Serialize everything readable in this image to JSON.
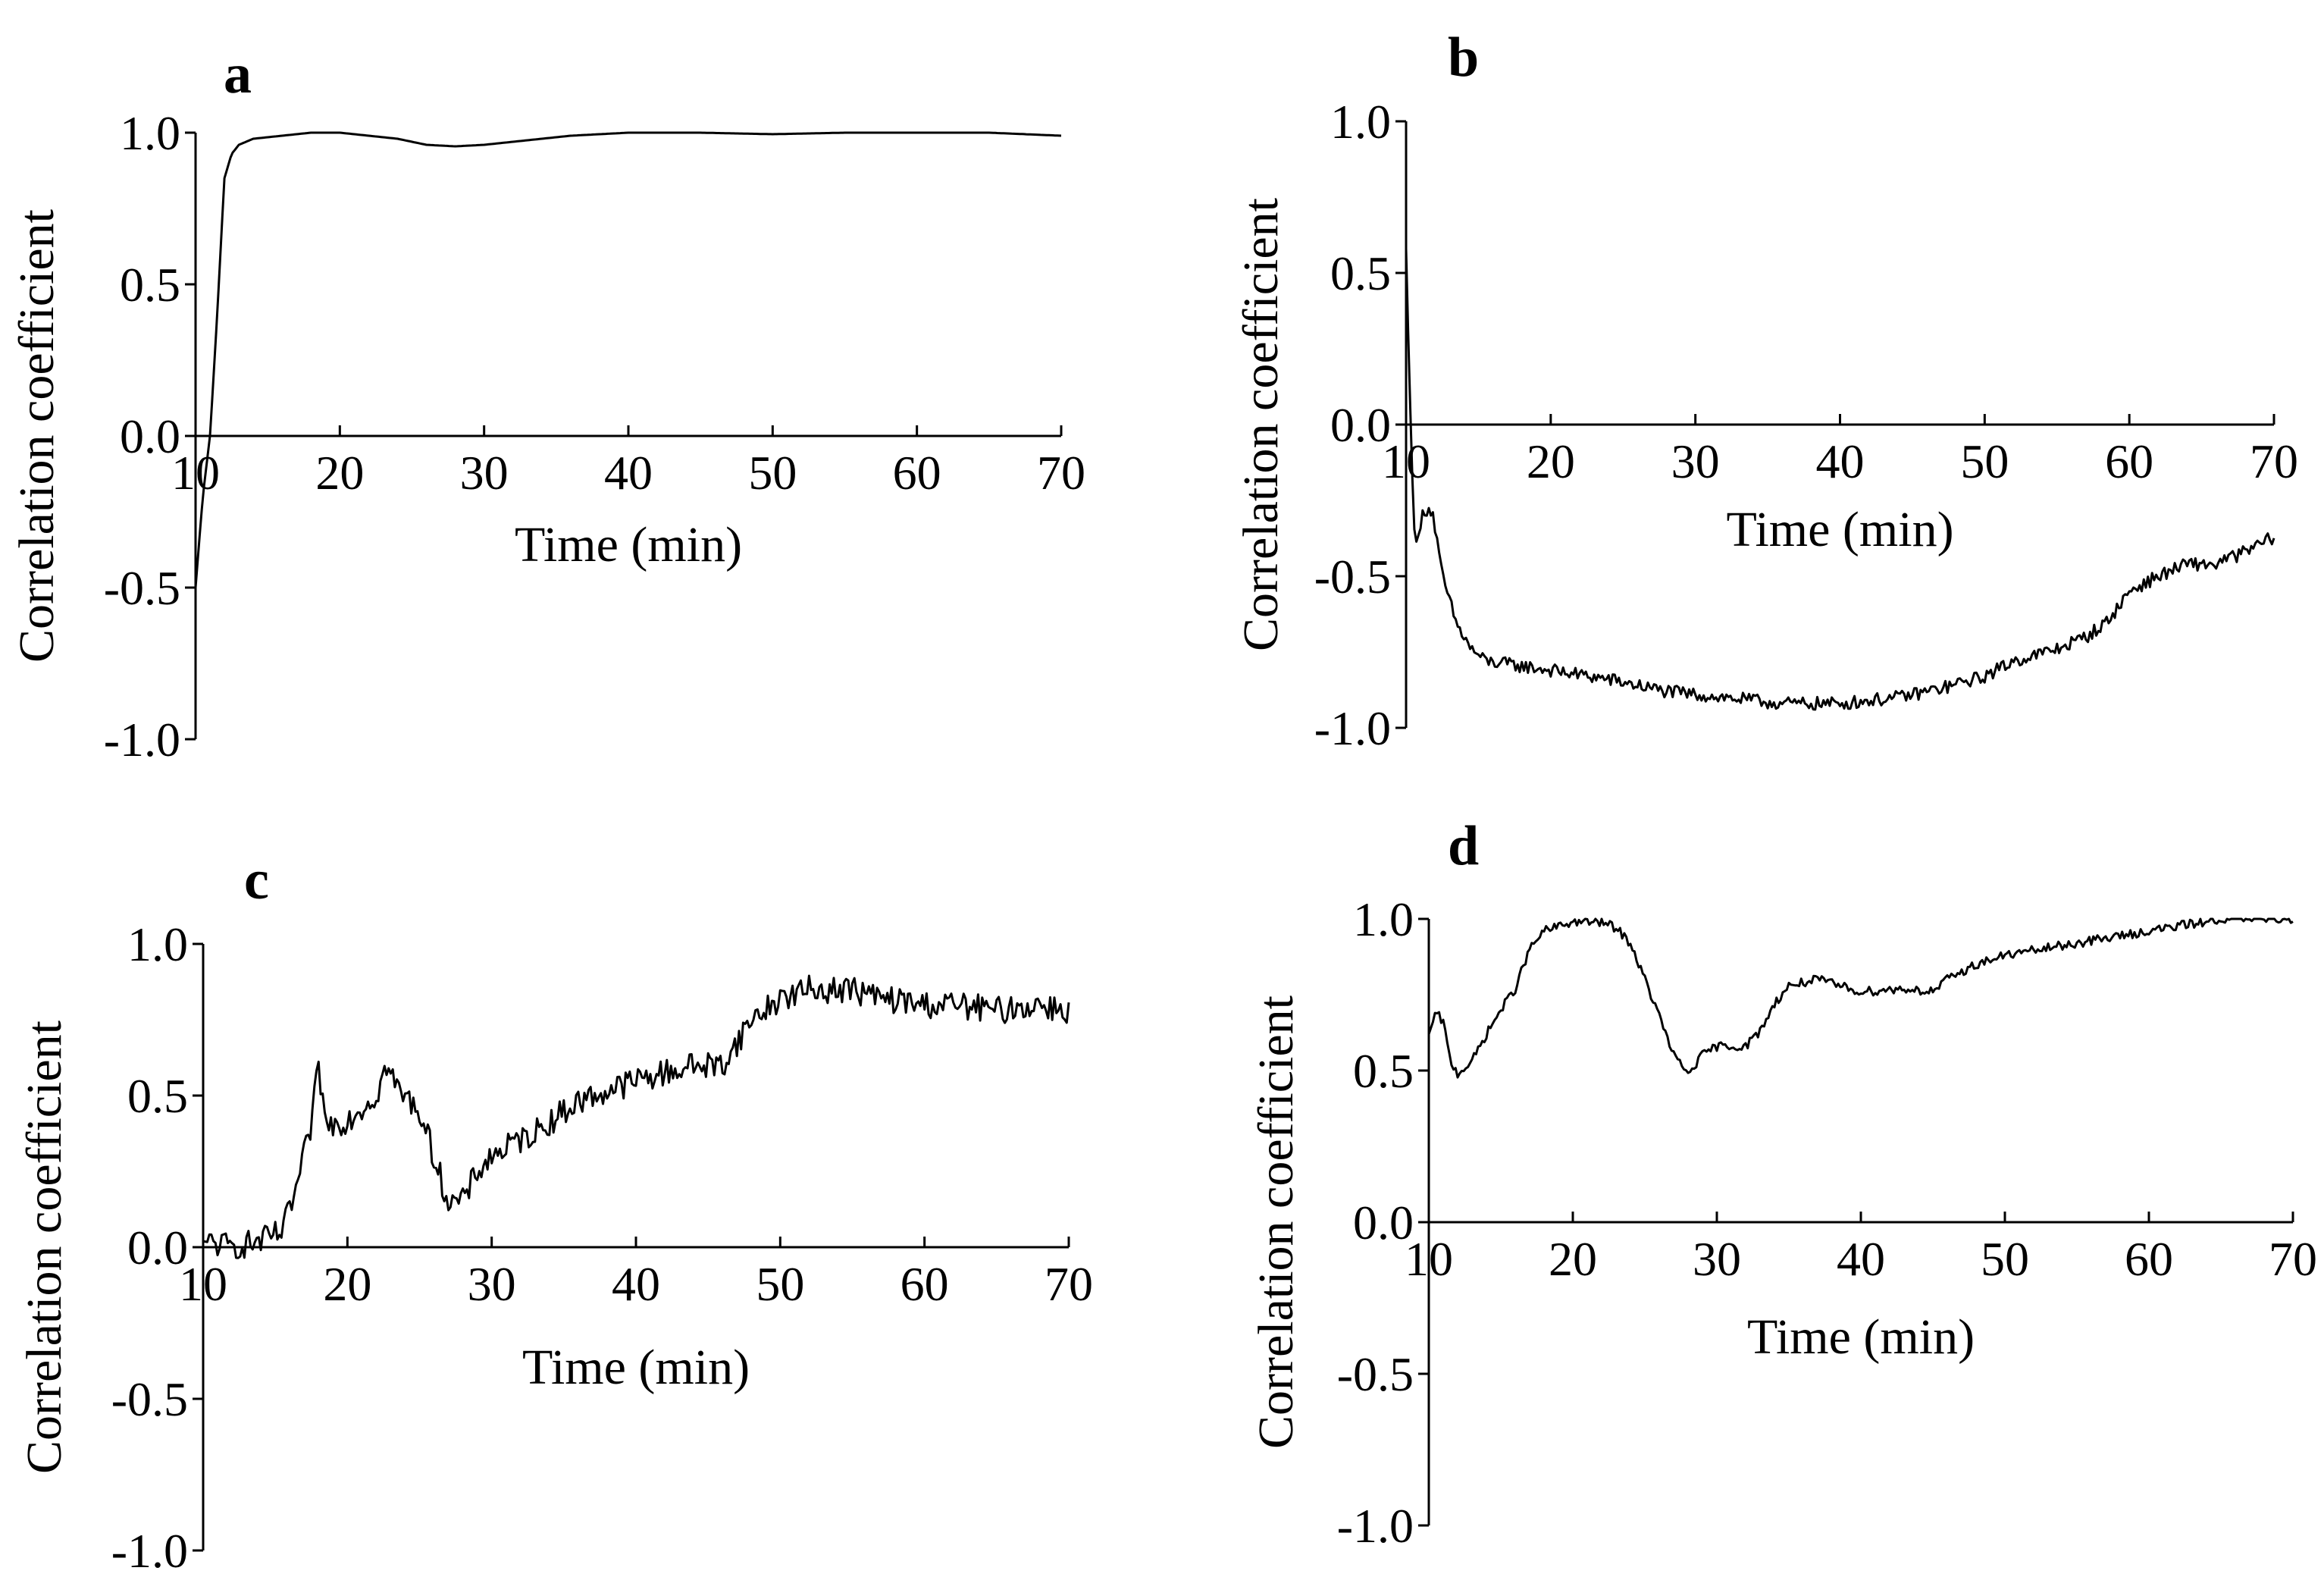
{
  "figure": {
    "panel_count": 4
  },
  "chart_data": [
    {
      "panel": "a",
      "type": "line",
      "title": "",
      "xlabel": "Time (min)",
      "ylabel": "Correlation coefficient",
      "xlim": [
        10,
        70
      ],
      "ylim": [
        -1.0,
        1.0
      ],
      "xticks": [
        10,
        20,
        30,
        40,
        50,
        60,
        70
      ],
      "yticks": [
        -1.0,
        -0.5,
        0.0,
        0.5,
        1.0
      ],
      "xtick_labels": [
        "10",
        "20",
        "30",
        "40",
        "50",
        "60",
        "70"
      ],
      "ytick_labels": [
        "-1.0",
        "-0.5",
        "0.0",
        "0.5",
        "1.0"
      ],
      "noise": 0,
      "series": [
        {
          "name": "correlation",
          "points": [
            [
              10,
              -0.5
            ],
            [
              10.5,
              -0.2
            ],
            [
              11,
              0.0
            ],
            [
              11.5,
              0.4
            ],
            [
              12,
              0.85
            ],
            [
              12.5,
              0.93
            ],
            [
              13,
              0.96
            ],
            [
              14,
              0.98
            ],
            [
              16,
              0.99
            ],
            [
              18,
              1.0
            ],
            [
              20,
              1.0
            ],
            [
              22,
              0.99
            ],
            [
              24,
              0.98
            ],
            [
              26,
              0.96
            ],
            [
              28,
              0.955
            ],
            [
              30,
              0.96
            ],
            [
              32,
              0.97
            ],
            [
              34,
              0.98
            ],
            [
              36,
              0.99
            ],
            [
              40,
              1.0
            ],
            [
              45,
              1.0
            ],
            [
              50,
              0.995
            ],
            [
              55,
              1.0
            ],
            [
              60,
              1.0
            ],
            [
              65,
              1.0
            ],
            [
              70,
              0.99
            ]
          ]
        }
      ]
    },
    {
      "panel": "b",
      "type": "line",
      "title": "",
      "xlabel": "Time (min)",
      "ylabel": "Correlation coefficient",
      "xlim": [
        10,
        70
      ],
      "ylim": [
        -1.0,
        1.0
      ],
      "xticks": [
        10,
        20,
        30,
        40,
        50,
        60,
        70
      ],
      "yticks": [
        -1.0,
        -0.5,
        0.0,
        0.5,
        1.0
      ],
      "xtick_labels": [
        "10",
        "20",
        "30",
        "40",
        "50",
        "60",
        "70"
      ],
      "ytick_labels": [
        "-1.0",
        "-0.5",
        "0.0",
        "0.5",
        "1.0"
      ],
      "noise": 0.022,
      "series": [
        {
          "name": "correlation",
          "points": [
            [
              10,
              0.58
            ],
            [
              10.2,
              0.2
            ],
            [
              10.5,
              -0.3
            ],
            [
              10.8,
              -0.4
            ],
            [
              11.2,
              -0.28
            ],
            [
              11.8,
              -0.28
            ],
            [
              12.5,
              -0.5
            ],
            [
              13.5,
              -0.66
            ],
            [
              14.5,
              -0.74
            ],
            [
              15.5,
              -0.78
            ],
            [
              17,
              -0.79
            ],
            [
              20,
              -0.81
            ],
            [
              24,
              -0.84
            ],
            [
              28,
              -0.88
            ],
            [
              32,
              -0.9
            ],
            [
              36,
              -0.92
            ],
            [
              40,
              -0.92
            ],
            [
              44,
              -0.9
            ],
            [
              47,
              -0.87
            ],
            [
              50,
              -0.83
            ],
            [
              52,
              -0.78
            ],
            [
              55,
              -0.74
            ],
            [
              57,
              -0.7
            ],
            [
              58.5,
              -0.65
            ],
            [
              60,
              -0.55
            ],
            [
              62,
              -0.5
            ],
            [
              64,
              -0.46
            ],
            [
              66,
              -0.46
            ],
            [
              68,
              -0.42
            ],
            [
              70,
              -0.37
            ]
          ]
        }
      ]
    },
    {
      "panel": "c",
      "type": "line",
      "title": "",
      "xlabel": "Time (min)",
      "ylabel": "Correlation coefficient",
      "xlim": [
        10,
        70
      ],
      "ylim": [
        -1.0,
        1.0
      ],
      "xticks": [
        10,
        20,
        30,
        40,
        50,
        60,
        70
      ],
      "yticks": [
        -1.0,
        -0.5,
        0.0,
        0.5,
        1.0
      ],
      "xtick_labels": [
        "10",
        "20",
        "30",
        "40",
        "50",
        "60",
        "70"
      ],
      "ytick_labels": [
        "-1.0",
        "-0.5",
        "0.0",
        "0.5",
        "1.0"
      ],
      "noise": 0.045,
      "series": [
        {
          "name": "correlation",
          "points": [
            [
              10,
              0.02
            ],
            [
              12,
              0.0
            ],
            [
              14,
              0.02
            ],
            [
              15.5,
              0.05
            ],
            [
              16.5,
              0.2
            ],
            [
              17.5,
              0.4
            ],
            [
              18,
              0.6
            ],
            [
              18.5,
              0.4
            ],
            [
              20,
              0.42
            ],
            [
              22,
              0.5
            ],
            [
              22.7,
              0.6
            ],
            [
              23.5,
              0.52
            ],
            [
              25,
              0.45
            ],
            [
              26,
              0.3
            ],
            [
              27,
              0.15
            ],
            [
              28,
              0.15
            ],
            [
              29,
              0.25
            ],
            [
              30,
              0.3
            ],
            [
              33,
              0.38
            ],
            [
              36,
              0.48
            ],
            [
              40,
              0.55
            ],
            [
              44,
              0.6
            ],
            [
              46,
              0.6
            ],
            [
              48,
              0.75
            ],
            [
              50,
              0.82
            ],
            [
              52,
              0.85
            ],
            [
              55,
              0.85
            ],
            [
              57,
              0.82
            ],
            [
              60,
              0.8
            ],
            [
              62,
              0.8
            ],
            [
              65,
              0.78
            ],
            [
              68,
              0.8
            ],
            [
              70,
              0.78
            ]
          ]
        }
      ]
    },
    {
      "panel": "d",
      "type": "line",
      "title": "",
      "xlabel": "Time (min)",
      "ylabel": "Correlation coefficient",
      "xlim": [
        10,
        70
      ],
      "ylim": [
        -1.0,
        1.0
      ],
      "xticks": [
        10,
        20,
        30,
        40,
        50,
        60,
        70
      ],
      "yticks": [
        -1.0,
        -0.5,
        0.0,
        0.5,
        1.0
      ],
      "xtick_labels": [
        "10",
        "20",
        "30",
        "40",
        "50",
        "60",
        "70"
      ],
      "ytick_labels": [
        "-1.0",
        "-0.5",
        "0.0",
        "0.5",
        "1.0"
      ],
      "noise": 0.015,
      "series": [
        {
          "name": "correlation",
          "points": [
            [
              10,
              0.62
            ],
            [
              10.5,
              0.69
            ],
            [
              11,
              0.66
            ],
            [
              11.5,
              0.53
            ],
            [
              12,
              0.49
            ],
            [
              13,
              0.53
            ],
            [
              14,
              0.62
            ],
            [
              15,
              0.7
            ],
            [
              16,
              0.77
            ],
            [
              17,
              0.9
            ],
            [
              18,
              0.96
            ],
            [
              20,
              0.99
            ],
            [
              22,
              0.99
            ],
            [
              23,
              0.97
            ],
            [
              24,
              0.92
            ],
            [
              25,
              0.8
            ],
            [
              26,
              0.68
            ],
            [
              27,
              0.55
            ],
            [
              28,
              0.49
            ],
            [
              29,
              0.55
            ],
            [
              30,
              0.58
            ],
            [
              32,
              0.58
            ],
            [
              33,
              0.63
            ],
            [
              34,
              0.72
            ],
            [
              35,
              0.78
            ],
            [
              37,
              0.8
            ],
            [
              40,
              0.76
            ],
            [
              43,
              0.77
            ],
            [
              45,
              0.76
            ],
            [
              46,
              0.8
            ],
            [
              48,
              0.85
            ],
            [
              50,
              0.88
            ],
            [
              55,
              0.92
            ],
            [
              60,
              0.96
            ],
            [
              65,
              1.0
            ],
            [
              70,
              1.0
            ]
          ]
        }
      ]
    }
  ]
}
